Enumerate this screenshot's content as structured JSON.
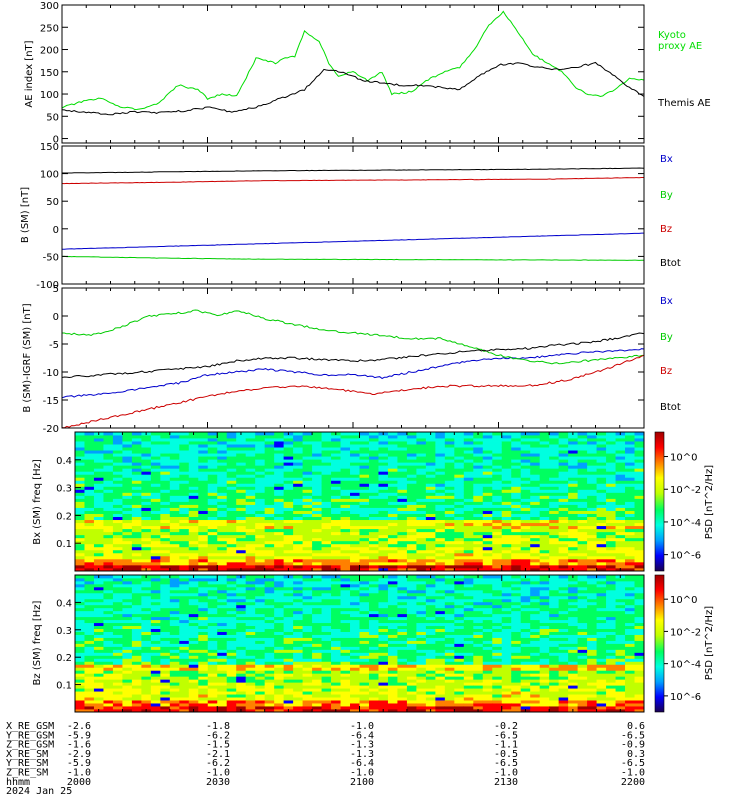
{
  "chart_data": [
    {
      "type": "line",
      "ylabel": "AE index [nT]",
      "ylim": [
        -10,
        300
      ],
      "yticks": [
        "0",
        "50",
        "100",
        "150",
        "200",
        "250",
        "300"
      ],
      "ytick_values": [
        0,
        50,
        100,
        150,
        200,
        250,
        300
      ],
      "xlim": [
        0,
        120
      ],
      "series": [
        {
          "name": "Kyoto proxy AE",
          "name_lines": [
            "Kyoto",
            "proxy AE"
          ],
          "color": "#00dd00",
          "x": [
            0,
            5,
            8,
            12,
            16,
            20,
            24,
            28,
            30,
            33,
            36,
            40,
            44,
            46,
            48,
            50,
            53,
            55,
            57,
            60,
            63,
            66,
            68,
            72,
            75,
            79,
            82,
            85,
            88,
            91,
            94,
            97,
            100,
            103,
            106,
            108,
            111,
            114,
            117,
            120
          ],
          "y": [
            70,
            85,
            90,
            72,
            65,
            80,
            120,
            110,
            90,
            100,
            95,
            180,
            170,
            180,
            185,
            240,
            220,
            170,
            140,
            150,
            130,
            150,
            100,
            105,
            130,
            150,
            160,
            200,
            255,
            285,
            240,
            190,
            170,
            150,
            115,
            100,
            95,
            110,
            135,
            130
          ]
        },
        {
          "name": "Themis AE",
          "name_lines": [
            "Themis AE"
          ],
          "color": "#000000",
          "x": [
            0,
            5,
            10,
            15,
            20,
            25,
            30,
            35,
            40,
            45,
            50,
            54,
            58,
            62,
            66,
            70,
            74,
            78,
            82,
            86,
            90,
            94,
            98,
            102,
            106,
            110,
            114,
            117,
            120
          ],
          "y": [
            65,
            58,
            55,
            60,
            58,
            62,
            70,
            60,
            70,
            90,
            110,
            155,
            150,
            130,
            125,
            120,
            120,
            115,
            110,
            140,
            165,
            170,
            160,
            155,
            160,
            170,
            140,
            115,
            95
          ]
        }
      ]
    },
    {
      "type": "line",
      "ylabel": "B (SM) [nT]",
      "ylim": [
        -100,
        150
      ],
      "yticks": [
        "-100",
        "-50",
        "0",
        "50",
        "100",
        "150"
      ],
      "ytick_values": [
        -100,
        -50,
        0,
        50,
        100,
        150
      ],
      "xlim": [
        0,
        120
      ],
      "series": [
        {
          "name": "Bx",
          "color": "#0000cc",
          "x": [
            0,
            120
          ],
          "y": [
            -37,
            -8
          ]
        },
        {
          "name": "By",
          "color": "#00cc00",
          "x": [
            0,
            20,
            40,
            80,
            120
          ],
          "y": [
            -50,
            -53,
            -55,
            -56,
            -57
          ]
        },
        {
          "name": "Bz",
          "color": "#cc0000",
          "x": [
            0,
            20,
            40,
            60,
            80,
            100,
            120
          ],
          "y": [
            82,
            84,
            87,
            88,
            89,
            90,
            93
          ]
        },
        {
          "name": "Btot",
          "color": "#000000",
          "x": [
            0,
            20,
            40,
            60,
            80,
            100,
            120
          ],
          "y": [
            101,
            103,
            105,
            106,
            107,
            108,
            110
          ]
        }
      ]
    },
    {
      "type": "line",
      "ylabel": "B (SM)-IGRF (SM) [nT]",
      "ylim": [
        -20,
        5
      ],
      "yticks": [
        "-20",
        "-15",
        "-10",
        "-5",
        "0",
        "5"
      ],
      "ytick_values": [
        -20,
        -15,
        -10,
        -5,
        0,
        5
      ],
      "xlim": [
        0,
        120
      ],
      "series": [
        {
          "name": "Bx",
          "color": "#0000cc",
          "x": [
            0,
            8,
            16,
            24,
            30,
            36,
            42,
            48,
            54,
            60,
            66,
            72,
            78,
            84,
            90,
            96,
            102,
            108,
            114,
            120
          ],
          "y": [
            -14.5,
            -14,
            -13,
            -12,
            -10.5,
            -10,
            -9.5,
            -10,
            -10.5,
            -10.5,
            -11,
            -10,
            -9,
            -8,
            -7.5,
            -7.5,
            -7,
            -6.5,
            -6.2,
            -6
          ]
        },
        {
          "name": "By",
          "color": "#00cc00",
          "x": [
            0,
            6,
            12,
            18,
            24,
            28,
            32,
            36,
            42,
            48,
            54,
            60,
            66,
            72,
            78,
            84,
            90,
            96,
            102,
            108,
            114,
            120
          ],
          "y": [
            -3,
            -3.5,
            -2,
            0,
            0.5,
            1,
            0,
            1,
            -0.5,
            -1.5,
            -2.5,
            -3,
            -3.5,
            -4,
            -4,
            -5.5,
            -7,
            -8,
            -8.5,
            -8,
            -7.5,
            -7
          ]
        },
        {
          "name": "Bz",
          "color": "#cc0000",
          "x": [
            0,
            8,
            16,
            24,
            32,
            40,
            48,
            56,
            64,
            72,
            80,
            88,
            96,
            104,
            112,
            120
          ],
          "y": [
            -20,
            -18.5,
            -17,
            -15.5,
            -14,
            -13,
            -12.5,
            -13,
            -14,
            -13,
            -12.5,
            -12.5,
            -12.5,
            -11.5,
            -9.5,
            -7
          ]
        },
        {
          "name": "Btot",
          "color": "#000000",
          "x": [
            0,
            8,
            16,
            24,
            30,
            36,
            42,
            48,
            54,
            60,
            66,
            72,
            78,
            84,
            90,
            96,
            102,
            108,
            114,
            120
          ],
          "y": [
            -11,
            -10.5,
            -10,
            -9.5,
            -9,
            -8,
            -7.5,
            -7.5,
            -7.8,
            -8,
            -7.8,
            -7.2,
            -6.8,
            -6.2,
            -6,
            -5.8,
            -5.2,
            -4.8,
            -4,
            -3
          ]
        }
      ]
    },
    {
      "type": "heatmap",
      "ylabel": "Bx (SM) freq [Hz]",
      "ylim": [
        0,
        0.5
      ],
      "yticks": [
        "0.1",
        "0.2",
        "0.3",
        "0.4"
      ],
      "ytick_values": [
        0.1,
        0.2,
        0.3,
        0.4
      ],
      "colorbar": {
        "label": "PSD [nT^2/Hz]",
        "ticks": [
          "10^0",
          "10^-2",
          "10^-4",
          "10^-6"
        ],
        "tick_exponents": [
          0,
          -2,
          -4,
          -6
        ],
        "range": [
          -7,
          1.5
        ],
        "colormap": [
          "#1a0050",
          "#0000ff",
          "#00a0ff",
          "#00ffe0",
          "#00ff60",
          "#c0ff00",
          "#ffff00",
          "#ff8000",
          "#ff0000",
          "#a00000"
        ]
      }
    },
    {
      "type": "heatmap",
      "ylabel": "Bz (SM) freq [Hz]",
      "ylim": [
        0,
        0.5
      ],
      "yticks": [
        "0.1",
        "0.2",
        "0.3",
        "0.4"
      ],
      "ytick_values": [
        0.1,
        0.2,
        0.3,
        0.4
      ],
      "colorbar": {
        "label": "PSD [nT^2/Hz]",
        "ticks": [
          "10^0",
          "10^-2",
          "10^-4",
          "10^-6"
        ],
        "tick_exponents": [
          0,
          -2,
          -4,
          -6
        ],
        "range": [
          -7,
          1.5
        ],
        "colormap": [
          "#1a0050",
          "#0000ff",
          "#00a0ff",
          "#00ffe0",
          "#00ff60",
          "#c0ff00",
          "#ffff00",
          "#ff8000",
          "#ff0000",
          "#a00000"
        ]
      }
    }
  ],
  "ephemeris": {
    "rows": [
      {
        "label": "X_RE_GSM",
        "values": [
          "-2.6",
          "-1.8",
          "-1.0",
          "-0.2",
          "0.6"
        ]
      },
      {
        "label": "Y_RE_GSM",
        "values": [
          "-5.9",
          "-6.2",
          "-6.4",
          "-6.5",
          "-6.5"
        ]
      },
      {
        "label": "Z_RE_GSM",
        "values": [
          "-1.6",
          "-1.5",
          "-1.3",
          "-1.1",
          "-0.9"
        ]
      },
      {
        "label": "X_RE_SM",
        "values": [
          "-2.9",
          "-2.1",
          "-1.3",
          "-0.5",
          "0.3"
        ]
      },
      {
        "label": "Y_RE_SM",
        "values": [
          "-5.9",
          "-6.2",
          "-6.4",
          "-6.5",
          "-6.5"
        ]
      },
      {
        "label": "Z_RE_SM",
        "values": [
          "-1.0",
          "-1.0",
          "-1.0",
          "-1.0",
          "-1.0"
        ]
      },
      {
        "label": "hhmm",
        "values": [
          "2000",
          "2030",
          "2100",
          "2130",
          "2200"
        ]
      }
    ],
    "date": "2024 Jan 25"
  }
}
